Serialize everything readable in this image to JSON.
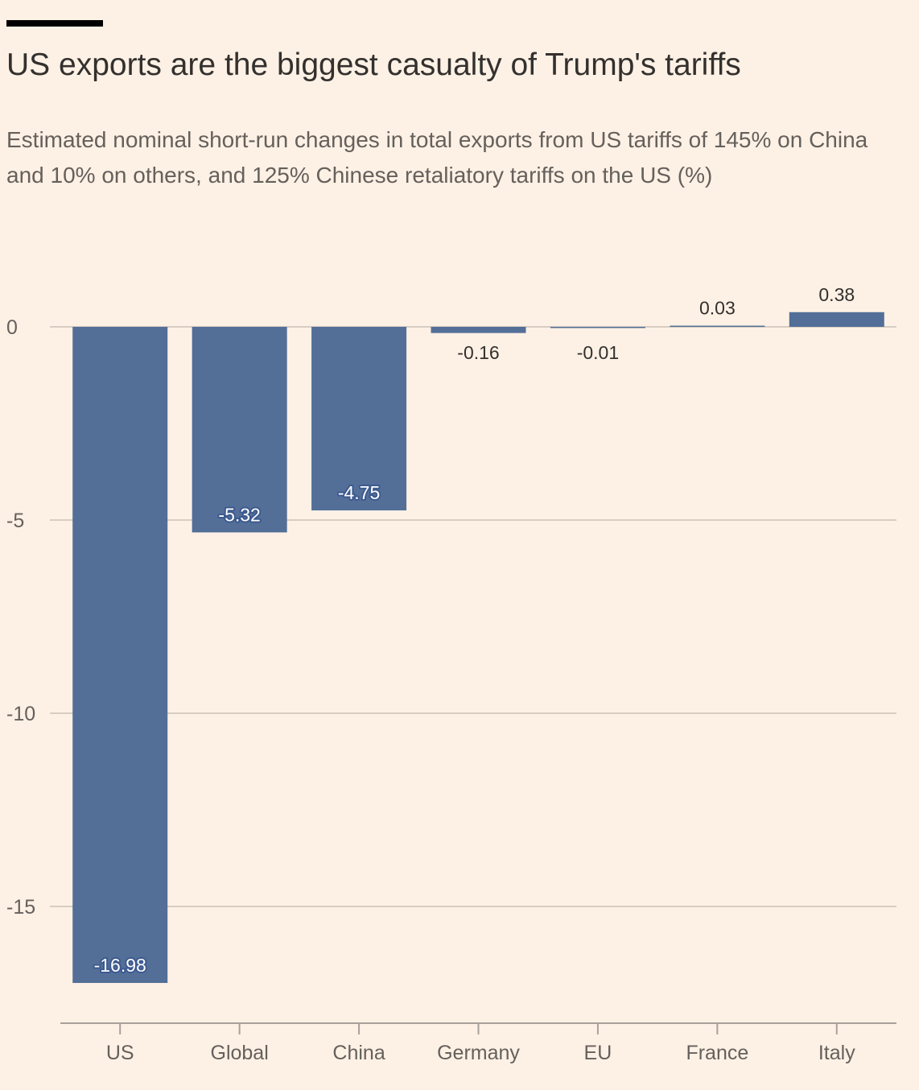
{
  "title": "US exports are the biggest casualty of Trump's tariffs",
  "subtitle": "Estimated nominal short-run changes in total exports from US tariffs of 145% on China and 10% on others, and 125% Chinese retaliatory tariffs on the US (%)",
  "colors": {
    "background": "#fdf1e5",
    "bar": "#536f98",
    "gridline": "#d7cdc2",
    "axis": "#a8a09a",
    "text": "#33302e",
    "muted_text": "#66605c"
  },
  "chart_data": {
    "type": "bar",
    "title": "US exports are the biggest casualty of Trump's tariffs",
    "subtitle": "Estimated nominal short-run changes in total exports from US tariffs of 145% on China and 10% on others, and 125% Chinese retaliatory tariffs on the US (%)",
    "xlabel": "",
    "ylabel": "",
    "categories": [
      "US",
      "Global",
      "China",
      "Germany",
      "EU",
      "France",
      "Italy"
    ],
    "values": [
      -16.98,
      -5.32,
      -4.75,
      -0.16,
      -0.01,
      0.03,
      0.38
    ],
    "value_labels": [
      "-16.98",
      "-5.32",
      "-4.75",
      "-0.16",
      "-0.01",
      "0.03",
      "0.38"
    ],
    "ylim": [
      -18.2,
      0.38
    ],
    "yticks": [
      0,
      -5,
      -10,
      -15
    ],
    "ytick_labels": [
      "0",
      "-5",
      "-10",
      "-15"
    ],
    "grid": true,
    "legend": "none"
  }
}
